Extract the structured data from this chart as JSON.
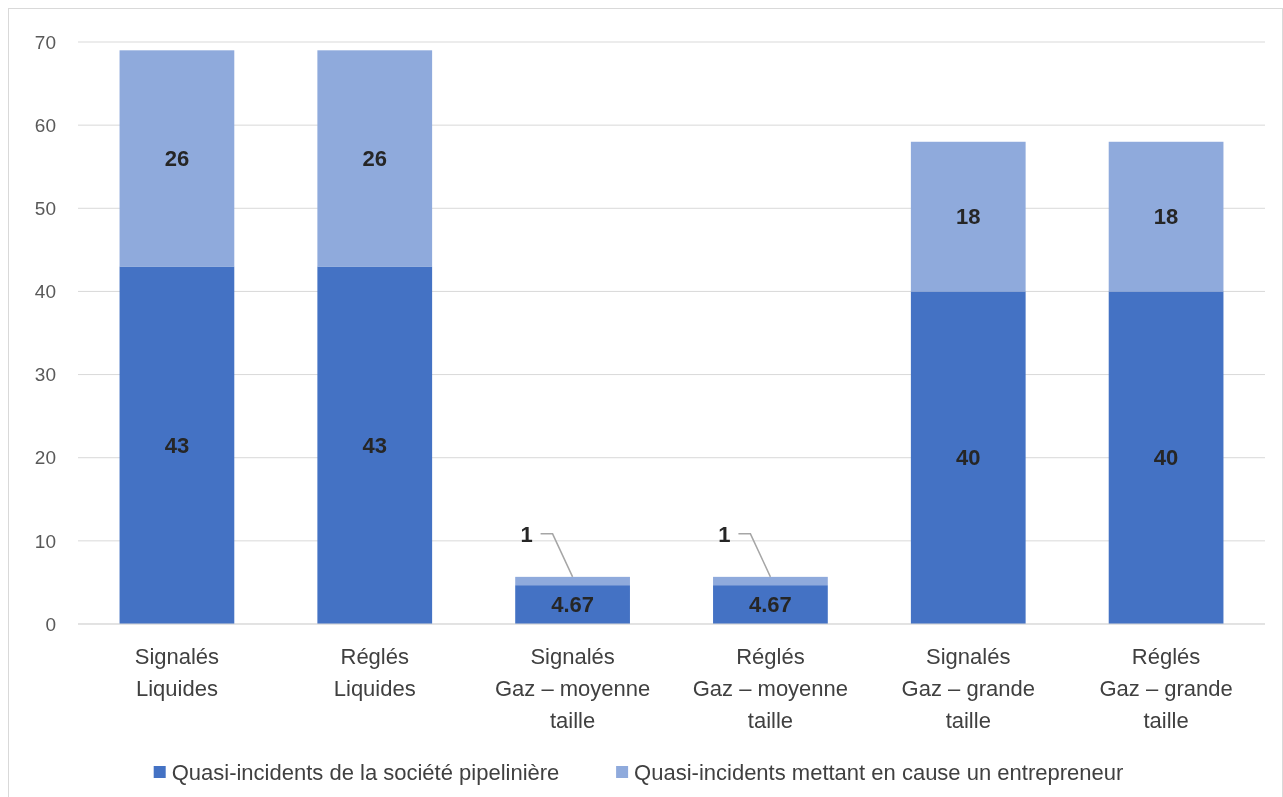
{
  "chart_data": {
    "type": "bar",
    "stacked": true,
    "categories": [
      "Signalés\nLiquides",
      "Réglés\nLiquides",
      "Signalés\nGaz – moyenne taille",
      "Réglés\nGaz – moyenne taille",
      "Signalés\nGaz – grande taille",
      "Réglés\nGaz – grande taille"
    ],
    "series": [
      {
        "name": "Quasi-incidents de la société pipelinière",
        "color": "#4472c4",
        "values": [
          43,
          43,
          4.67,
          4.67,
          40,
          40
        ]
      },
      {
        "name": "Quasi-incidents mettant en cause un entrepreneur",
        "color": "#8faadc",
        "values": [
          26,
          26,
          1,
          1,
          18,
          18
        ]
      }
    ],
    "ylim": [
      0,
      70
    ],
    "yticks": [
      0,
      10,
      20,
      30,
      40,
      50,
      60,
      70
    ],
    "grid": "y",
    "legend": "bottom",
    "data_labels": true
  }
}
